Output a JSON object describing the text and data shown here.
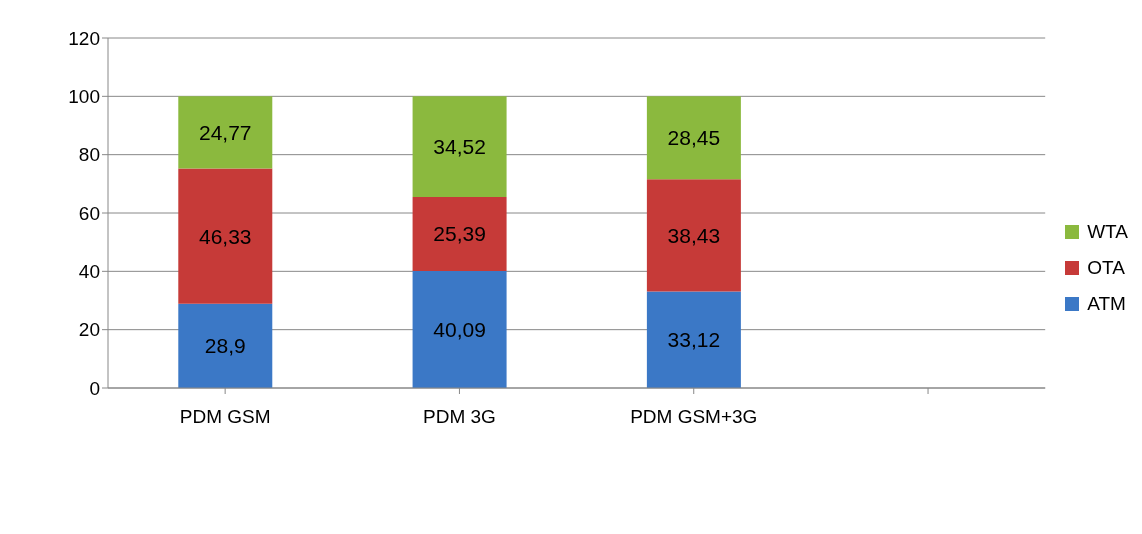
{
  "chart_data": {
    "type": "bar",
    "stacked": true,
    "categories": [
      "PDM GSM",
      "PDM 3G",
      "PDM GSM+3G",
      null
    ],
    "series": [
      {
        "name": "ATM",
        "color": "#3b78c6",
        "values": [
          28.9,
          40.09,
          33.12,
          null
        ],
        "value_labels": [
          "28,9",
          "40,09",
          "33,12",
          null
        ]
      },
      {
        "name": "OTA",
        "color": "#c63a38",
        "values": [
          46.33,
          25.39,
          38.43,
          null
        ],
        "value_labels": [
          "46,33",
          "25,39",
          "38,43",
          null
        ]
      },
      {
        "name": "WTA",
        "color": "#8bb93e",
        "values": [
          24.77,
          34.52,
          28.45,
          null
        ],
        "value_labels": [
          "24,77",
          "34,52",
          "28,45",
          null
        ]
      }
    ],
    "ylim": [
      0,
      120
    ],
    "yticks": [
      0,
      20,
      40,
      60,
      80,
      100,
      120
    ],
    "grid": "y",
    "legend": "right"
  }
}
